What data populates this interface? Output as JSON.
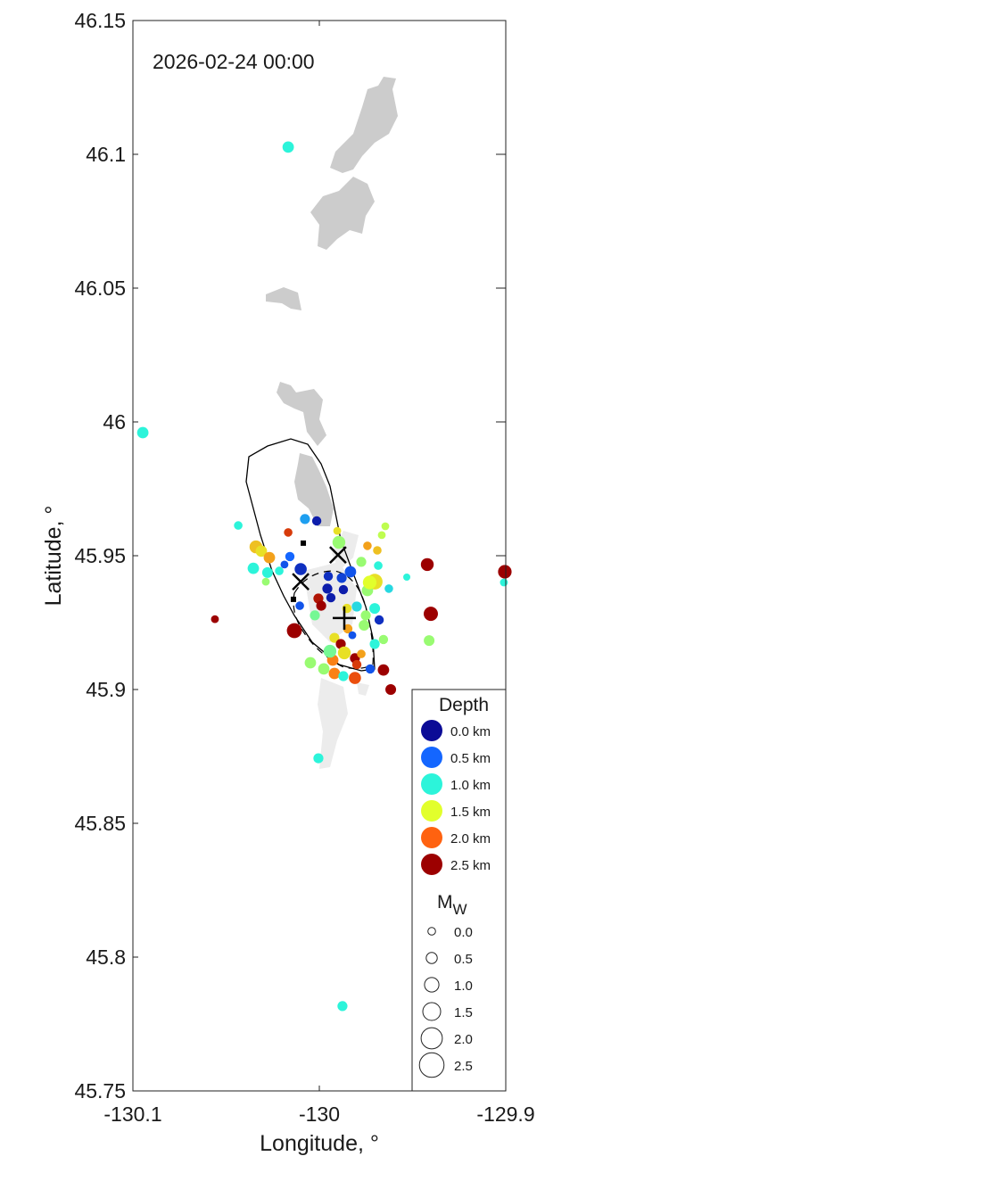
{
  "chart_data": {
    "type": "scatter",
    "title": "",
    "annotation": "2026-02-24 00:00",
    "xlabel": "Longitude, °",
    "ylabel": "Latitude, °",
    "xlim": [
      -130.1,
      -129.9
    ],
    "ylim": [
      45.75,
      46.15
    ],
    "xticks": [
      -130.1,
      -130,
      -129.9
    ],
    "xtick_labels": [
      "-130.1",
      "-130",
      "-129.9"
    ],
    "yticks": [
      45.75,
      45.8,
      45.85,
      45.9,
      45.95,
      46,
      46.05,
      46.1,
      46.15
    ],
    "ytick_labels": [
      "45.75",
      "45.8",
      "45.85",
      "45.9",
      "45.95",
      "46",
      "46.05",
      "46.1",
      "46.15"
    ],
    "grid": false,
    "legend_placement": "bottom-right",
    "depth_legend": {
      "title": "Depth",
      "entries": [
        {
          "label": "0.0 km",
          "depth": 0.0,
          "color": "#0b0b96"
        },
        {
          "label": "0.5 km",
          "depth": 0.5,
          "color": "#1466ff"
        },
        {
          "label": "1.0 km",
          "depth": 1.0,
          "color": "#2cf4da"
        },
        {
          "label": "1.5 km",
          "depth": 1.5,
          "color": "#e2ff2c"
        },
        {
          "label": "2.0 km",
          "depth": 2.0,
          "color": "#ff6210"
        },
        {
          "label": "2.5 km",
          "depth": 2.5,
          "color": "#9c0000"
        }
      ]
    },
    "mag_legend": {
      "title": "M",
      "title_sub": "W",
      "entries": [
        {
          "label": "0.0",
          "mag": 0.0
        },
        {
          "label": "0.5",
          "mag": 0.5
        },
        {
          "label": "1.0",
          "mag": 1.0
        },
        {
          "label": "1.5",
          "mag": 1.5
        },
        {
          "label": "2.0",
          "mag": 2.0
        },
        {
          "label": "2.5",
          "mag": 2.5
        }
      ]
    },
    "point_fields": [
      "lon",
      "lat",
      "depth_km",
      "mw"
    ],
    "points": [
      [
        -130.0167,
        46.1027,
        1.0,
        0.6
      ],
      [
        -130.0947,
        45.996,
        1.0,
        0.6
      ],
      [
        -130.056,
        45.9263,
        2.5,
        0.1
      ],
      [
        -130.0435,
        45.9613,
        1.0,
        0.2
      ],
      [
        -130.0167,
        45.9587,
        2.2,
        0.2
      ],
      [
        -130.0077,
        45.9637,
        0.7,
        0.4
      ],
      [
        -130.0014,
        45.963,
        0.1,
        0.3
      ],
      [
        -130.034,
        45.9533,
        1.7,
        0.8
      ],
      [
        -130.0311,
        45.9517,
        1.6,
        0.6
      ],
      [
        -130.0268,
        45.9493,
        1.8,
        0.6
      ],
      [
        -130.0354,
        45.9453,
        1.0,
        0.6
      ],
      [
        -130.0278,
        45.9437,
        1.0,
        0.5
      ],
      [
        -130.0287,
        45.9403,
        1.3,
        0.1
      ],
      [
        -130.0215,
        45.9443,
        1.0,
        0.2
      ],
      [
        -130.0187,
        45.9467,
        0.4,
        0.1
      ],
      [
        -130.0158,
        45.9497,
        0.5,
        0.3
      ],
      [
        -130.01,
        45.945,
        0.2,
        0.7
      ],
      [
        -130.0105,
        45.9313,
        0.4,
        0.2
      ],
      [
        -130.0134,
        45.922,
        2.5,
        1.1
      ],
      [
        -130.0024,
        45.9277,
        1.2,
        0.4
      ],
      [
        -130.0005,
        45.934,
        2.4,
        0.4
      ],
      [
        -129.999,
        45.9313,
        2.5,
        0.4
      ],
      [
        -129.9952,
        45.9423,
        0.2,
        0.3
      ],
      [
        -129.9957,
        45.9377,
        0.1,
        0.4
      ],
      [
        -129.9938,
        45.9343,
        0.1,
        0.3
      ],
      [
        -129.9895,
        45.955,
        1.3,
        0.8
      ],
      [
        -129.988,
        45.9417,
        0.3,
        0.4
      ],
      [
        -129.9871,
        45.9373,
        0.1,
        0.3
      ],
      [
        -129.9833,
        45.944,
        0.4,
        0.6
      ],
      [
        -129.9799,
        45.931,
        0.9,
        0.4
      ],
      [
        -129.9775,
        45.9477,
        1.3,
        0.4
      ],
      [
        -129.9742,
        45.9537,
        1.8,
        0.2
      ],
      [
        -129.9689,
        45.952,
        1.7,
        0.2
      ],
      [
        -129.9646,
        45.961,
        1.4,
        0.1
      ],
      [
        -129.9665,
        45.9577,
        1.4,
        0.1
      ],
      [
        -129.9531,
        45.942,
        1.0,
        0.0
      ],
      [
        -129.9627,
        45.9377,
        0.9,
        0.2
      ],
      [
        -129.9703,
        45.9403,
        1.6,
        1.2
      ],
      [
        -129.9742,
        45.937,
        1.3,
        0.6
      ],
      [
        -129.9679,
        45.926,
        0.2,
        0.3
      ],
      [
        -129.9703,
        45.9303,
        1.0,
        0.5
      ],
      [
        -129.9751,
        45.9277,
        1.3,
        0.4
      ],
      [
        -129.9656,
        45.9187,
        1.3,
        0.3
      ],
      [
        -129.9703,
        45.917,
        1.0,
        0.4
      ],
      [
        -129.9727,
        45.9077,
        0.4,
        0.3
      ],
      [
        -129.9656,
        45.9073,
        2.5,
        0.6
      ],
      [
        -129.9617,
        45.9,
        2.5,
        0.5
      ],
      [
        -129.9421,
        45.9467,
        2.5,
        0.8
      ],
      [
        -129.9402,
        45.9283,
        2.5,
        1.0
      ],
      [
        -129.9411,
        45.9183,
        1.3,
        0.5
      ],
      [
        -129.9005,
        45.944,
        2.5,
        0.9
      ],
      [
        -129.901,
        45.94,
        1.0,
        0.1
      ],
      [
        -130.0005,
        45.8743,
        1.0,
        0.4
      ],
      [
        -129.9876,
        45.7817,
        1.0,
        0.4
      ],
      [
        -129.9919,
        45.9193,
        1.6,
        0.4
      ],
      [
        -129.9885,
        45.917,
        2.5,
        0.4
      ],
      [
        -129.9866,
        45.9137,
        1.6,
        0.8
      ],
      [
        -129.9928,
        45.911,
        1.9,
        0.6
      ],
      [
        -129.9809,
        45.9117,
        2.5,
        0.4
      ],
      [
        -129.9799,
        45.9093,
        2.2,
        0.3
      ],
      [
        -129.9809,
        45.9043,
        2.1,
        0.7
      ],
      [
        -129.9919,
        45.906,
        1.9,
        0.6
      ],
      [
        -130.0048,
        45.91,
        1.3,
        0.6
      ],
      [
        -129.9976,
        45.9077,
        1.3,
        0.6
      ],
      [
        -129.9943,
        45.9143,
        1.2,
        0.8
      ],
      [
        -129.9847,
        45.9227,
        1.8,
        0.3
      ],
      [
        -129.9823,
        45.9203,
        0.4,
        0.1
      ],
      [
        -129.9775,
        45.9133,
        1.8,
        0.2
      ],
      [
        -129.9871,
        45.905,
        1.0,
        0.4
      ],
      [
        -129.9852,
        45.9303,
        1.6,
        0.3
      ],
      [
        -129.9904,
        45.9593,
        1.6,
        0.1
      ],
      [
        -129.9684,
        45.9463,
        1.0,
        0.2
      ],
      [
        -129.976,
        45.924,
        1.3,
        0.5
      ],
      [
        -129.973,
        45.94,
        1.5,
        0.9
      ]
    ],
    "markers": [
      {
        "type": "x",
        "lon": -129.99,
        "lat": 45.9503
      },
      {
        "type": "x",
        "lon": -130.01,
        "lat": 45.9403
      },
      {
        "type": "plus",
        "lon": -129.9866,
        "lat": 45.9267
      },
      {
        "type": "square",
        "lon": -130.0086,
        "lat": 45.9547
      },
      {
        "type": "square",
        "lon": -130.0139,
        "lat": 45.9337
      }
    ]
  }
}
